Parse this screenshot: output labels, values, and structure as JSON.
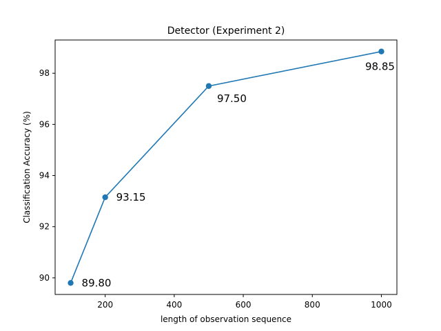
{
  "chart_data": {
    "type": "line",
    "title": "Detector (Experiment 2)",
    "xlabel": "length of observation sequence",
    "ylabel": "Classification Accuracy (%)",
    "x": [
      100,
      200,
      500,
      1000
    ],
    "series": [
      {
        "values": [
          89.8,
          93.15,
          97.5,
          98.85
        ],
        "labels": [
          "89.80",
          "93.15",
          "97.50",
          "98.85"
        ],
        "color": "#1f77b4"
      }
    ],
    "xlim": [
      55,
      1045
    ],
    "ylim": [
      89.35,
      99.3
    ],
    "xticks": [
      200,
      400,
      600,
      800,
      1000
    ],
    "yticks": [
      90,
      92,
      94,
      96,
      98
    ],
    "grid": false,
    "legend": "none"
  }
}
